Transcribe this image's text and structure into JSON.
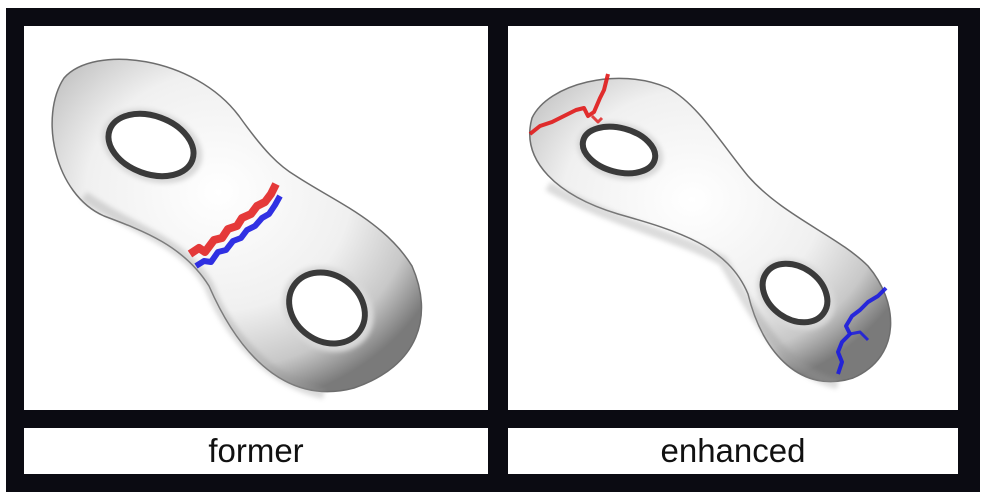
{
  "panels": [
    {
      "id": "left",
      "caption": "former"
    },
    {
      "id": "right",
      "caption": "enhanced"
    }
  ],
  "colors": {
    "frame": "#0b0b12",
    "surface": "#e9e9e9",
    "cut_red": "#e01818",
    "cut_blue": "#1a1ae0"
  },
  "icons": {
    "shape": "double-torus",
    "cut_path": "jagged-cut-line"
  }
}
